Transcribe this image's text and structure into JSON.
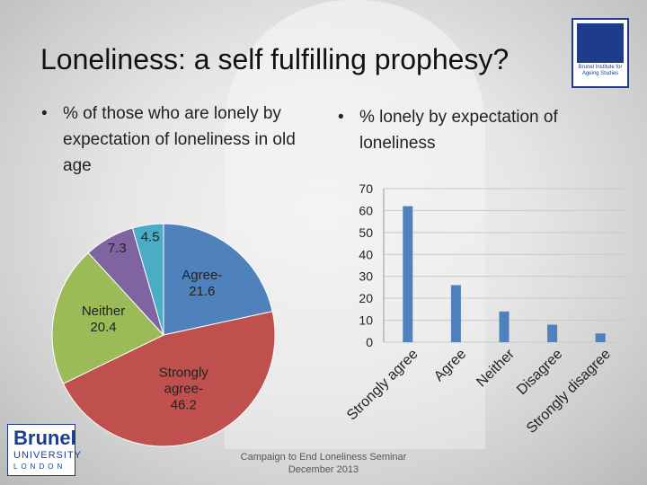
{
  "slide": {
    "title": "Loneliness: a self fulfilling prophesy?",
    "bullet_left": "% of those who are lonely by expectation of loneliness in old age",
    "bullet_right": "% lonely by expectation of loneliness",
    "bullet_symbol": "•",
    "footer_line1": "Campaign to End Loneliness Seminar",
    "footer_line2": "December 2013"
  },
  "logos": {
    "bis_text": "Brunel Institute for Ageing Studies",
    "brunel_name": "Brunel",
    "brunel_sub": "UNIVERSITY",
    "brunel_city": "LONDON"
  },
  "colors": {
    "blue": "#4f81bd",
    "red": "#c0504d",
    "green": "#9bbb59",
    "purple": "#8064a2",
    "teal": "#4bacc6"
  },
  "chart_data": [
    {
      "type": "pie",
      "slices": [
        {
          "label": "Agree-",
          "value": 21.6,
          "color": "#4f81bd"
        },
        {
          "label": "Strongly agree-",
          "value": 46.2,
          "color": "#c0504d"
        },
        {
          "label": "Neither",
          "value": 20.4,
          "color": "#9bbb59"
        },
        {
          "label": "",
          "value": 7.3,
          "color": "#8064a2"
        },
        {
          "label": "",
          "value": 4.5,
          "color": "#4bacc6"
        }
      ]
    },
    {
      "type": "bar",
      "categories": [
        "Strongly agree",
        "Agree",
        "Neither",
        "Disagree",
        "Strongly disagree"
      ],
      "values": [
        62,
        26,
        14,
        8,
        4
      ],
      "yticks": [
        "0",
        "10",
        "20",
        "30",
        "40",
        "50",
        "60",
        "70"
      ],
      "ylim": [
        0,
        70
      ],
      "grid": true,
      "color": "#4f81bd"
    }
  ]
}
